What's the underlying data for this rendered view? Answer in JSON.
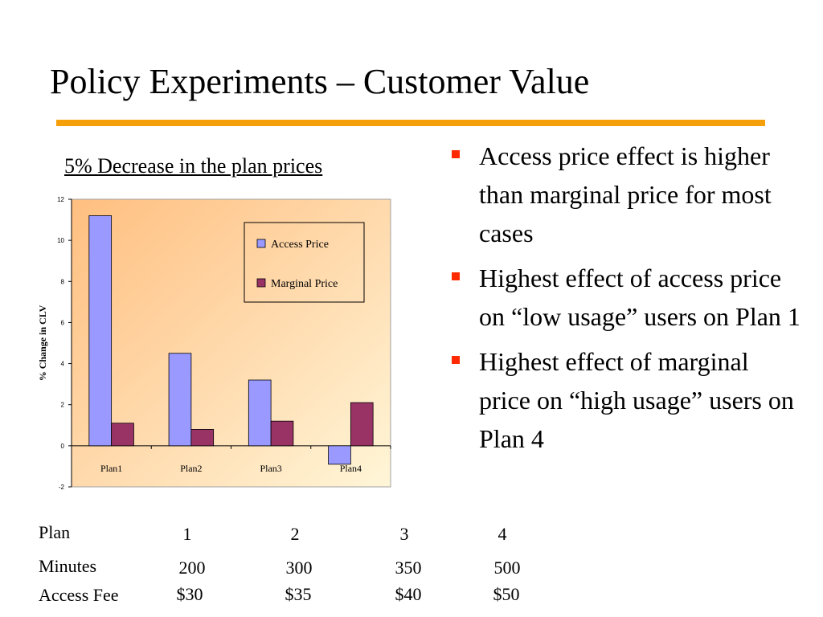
{
  "slide": {
    "title": "Policy Experiments – Customer Value",
    "chart_caption": "5% Decrease in the plan prices"
  },
  "colors": {
    "accent_rule": "#f5a00a",
    "bullet": "#ff2a00",
    "access_price": "#9999ff",
    "marginal_price": "#993366"
  },
  "chart_data": {
    "type": "bar",
    "categories": [
      "Plan1",
      "Plan2",
      "Plan3",
      "Plan4"
    ],
    "series": [
      {
        "name": "Access Price",
        "values": [
          11.2,
          4.5,
          3.2,
          -0.9
        ]
      },
      {
        "name": "Marginal Price",
        "values": [
          1.1,
          0.8,
          1.2,
          2.1
        ]
      }
    ],
    "ylabel": "% Change in CLV",
    "xlabel": "",
    "ylim": [
      -2,
      12
    ],
    "yticks": [
      -2,
      0,
      2,
      4,
      6,
      8,
      10,
      12
    ],
    "legend_position": "top-right",
    "grid": false
  },
  "bullets": [
    "Access price effect is higher than marginal price for most cases",
    "Highest effect of access price on “low usage” users on Plan 1",
    "Highest effect of marginal price on “high usage” users on Plan 4"
  ],
  "table": {
    "plan_label": "Plan",
    "minutes_label": "Minutes",
    "fee_label": "Access Fee",
    "plans": [
      "1",
      "2",
      "3",
      "4"
    ],
    "minutes": [
      "200",
      "300",
      "350",
      "500"
    ],
    "fees": [
      "$30",
      "$35",
      "$40",
      "$50"
    ]
  }
}
